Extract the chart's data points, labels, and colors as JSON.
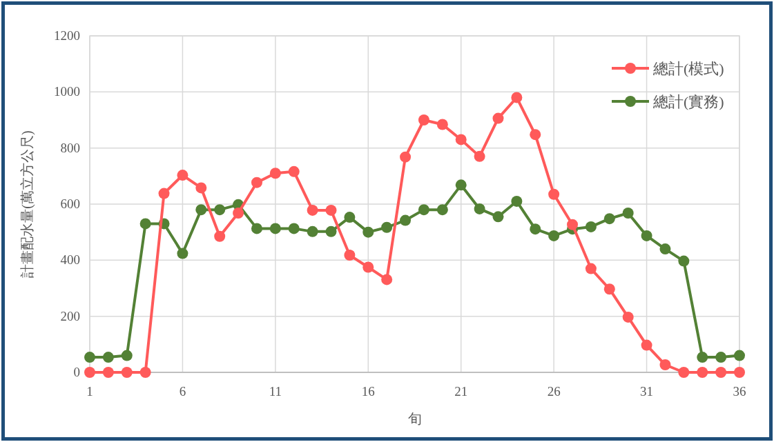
{
  "chart_data": {
    "type": "line",
    "xlabel": "旬",
    "ylabel": "計畫配水量(萬立方公尺)",
    "x": [
      1,
      2,
      3,
      4,
      5,
      6,
      7,
      8,
      9,
      10,
      11,
      12,
      13,
      14,
      15,
      16,
      17,
      18,
      19,
      20,
      21,
      22,
      23,
      24,
      25,
      26,
      27,
      28,
      29,
      30,
      31,
      32,
      33,
      34,
      35,
      36
    ],
    "series": [
      {
        "name": "總計(模式)",
        "color": "#ff5a5a",
        "values": [
          0,
          0,
          0,
          0,
          638,
          703,
          658,
          485,
          568,
          677,
          710,
          716,
          578,
          578,
          418,
          375,
          331,
          768,
          900,
          884,
          830,
          770,
          906,
          980,
          848,
          635,
          527,
          370,
          297,
          197,
          97,
          27,
          0,
          0,
          0,
          0
        ]
      },
      {
        "name": "總計(實務)",
        "color": "#538135",
        "values": [
          54,
          54,
          60,
          530,
          530,
          424,
          580,
          580,
          598,
          513,
          513,
          513,
          502,
          502,
          553,
          500,
          517,
          542,
          580,
          580,
          668,
          583,
          555,
          610,
          511,
          487,
          511,
          519,
          548,
          568,
          487,
          440,
          397,
          54,
          54,
          60
        ]
      }
    ],
    "xlim": [
      1,
      36
    ],
    "xticks": [
      1,
      6,
      11,
      16,
      21,
      26,
      31,
      36
    ],
    "ylim": [
      0,
      1200
    ],
    "yticks": [
      0,
      200,
      400,
      600,
      800,
      1000,
      1200
    ],
    "grid": true,
    "legend": "top right",
    "marker": "circle",
    "line_style": "solid"
  }
}
